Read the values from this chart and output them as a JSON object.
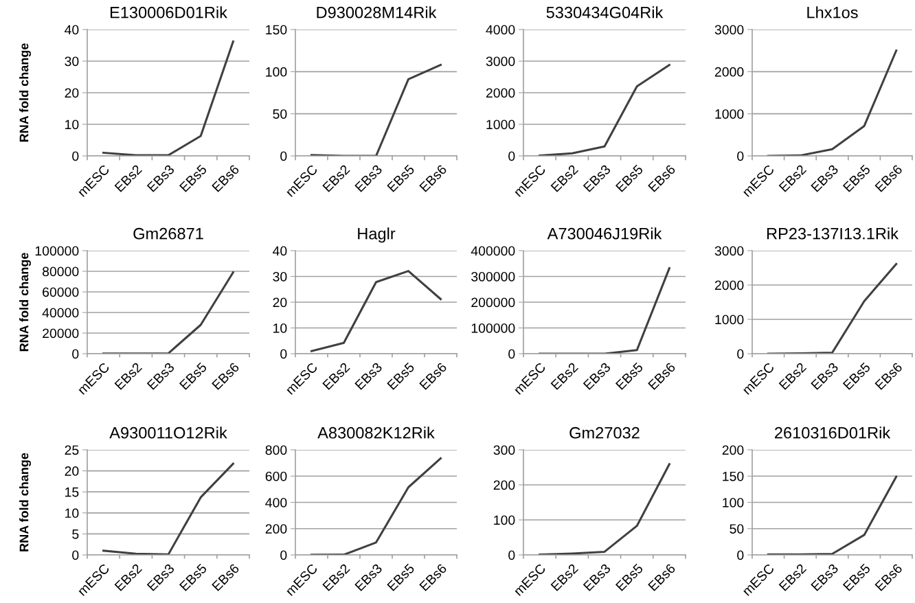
{
  "chart_data": [
    {
      "type": "line",
      "title": "E130006D01Rik",
      "ylabel": "RNA fold change",
      "categories": [
        "mESC",
        "EBs2",
        "EBs3",
        "EBs5",
        "EBs6"
      ],
      "series": [
        {
          "color": "#404040",
          "values": [
            1,
            0.2,
            0.2,
            6.3,
            36.2
          ]
        }
      ],
      "ylim": [
        0,
        40
      ],
      "yticks": [
        0,
        10,
        20,
        30,
        40
      ],
      "grid": "y",
      "marker": "none"
    },
    {
      "type": "line",
      "title": "D930028M14Rik",
      "categories": [
        "mESC",
        "EBs2",
        "EBs3",
        "EBs5",
        "EBs6"
      ],
      "series": [
        {
          "color": "#404040",
          "values": [
            1,
            0,
            0,
            91,
            108
          ]
        }
      ],
      "ylim": [
        0,
        150
      ],
      "yticks": [
        0,
        50,
        100,
        150
      ],
      "grid": "y",
      "marker": "none"
    },
    {
      "type": "line",
      "title": "5330434G04Rik",
      "categories": [
        "mESC",
        "EBs2",
        "EBs3",
        "EBs5",
        "EBs6"
      ],
      "series": [
        {
          "color": "#404040",
          "values": [
            10,
            80,
            300,
            2200,
            2880
          ]
        }
      ],
      "ylim": [
        0,
        4000
      ],
      "yticks": [
        0,
        1000,
        2000,
        3000,
        4000
      ],
      "grid": "y",
      "marker": "none"
    },
    {
      "type": "line",
      "title": "Lhx1os",
      "categories": [
        "mESC",
        "EBs2",
        "EBs3",
        "EBs5",
        "EBs6"
      ],
      "series": [
        {
          "color": "#404040",
          "values": [
            0,
            10,
            160,
            710,
            2500
          ]
        }
      ],
      "ylim": [
        0,
        3000
      ],
      "yticks": [
        0,
        1000,
        2000,
        3000
      ],
      "grid": "y",
      "marker": "none"
    },
    {
      "type": "line",
      "title": "Gm26871",
      "ylabel": "RNA fold change",
      "categories": [
        "mESC",
        "EBs2",
        "EBs3",
        "EBs5",
        "EBs6"
      ],
      "series": [
        {
          "color": "#404040",
          "values": [
            100,
            200,
            300,
            28000,
            79000
          ]
        }
      ],
      "ylim": [
        0,
        100000
      ],
      "yticks": [
        0,
        20000,
        40000,
        60000,
        80000,
        100000
      ],
      "grid": "y",
      "marker": "none"
    },
    {
      "type": "line",
      "title": "Haglr",
      "categories": [
        "mESC",
        "EBs2",
        "EBs3",
        "EBs5",
        "EBs6"
      ],
      "series": [
        {
          "color": "#404040",
          "values": [
            1,
            4.2,
            27.8,
            32.1,
            21.2
          ]
        }
      ],
      "ylim": [
        0,
        40
      ],
      "yticks": [
        0,
        10,
        20,
        30,
        40
      ],
      "grid": "y",
      "marker": "none"
    },
    {
      "type": "line",
      "title": "A730046J19Rik",
      "categories": [
        "mESC",
        "EBs2",
        "EBs3",
        "EBs5",
        "EBs6"
      ],
      "series": [
        {
          "color": "#404040",
          "values": [
            0,
            0,
            0,
            14000,
            332000
          ]
        }
      ],
      "ylim": [
        0,
        400000
      ],
      "yticks": [
        0,
        100000,
        200000,
        300000,
        400000
      ],
      "grid": "y",
      "marker": "none"
    },
    {
      "type": "line",
      "title": "RP23-137I13.1Rik",
      "categories": [
        "mESC",
        "EBs2",
        "EBs3",
        "EBs5",
        "EBs6"
      ],
      "series": [
        {
          "color": "#404040",
          "values": [
            0,
            10,
            30,
            1530,
            2610
          ]
        }
      ],
      "ylim": [
        0,
        3000
      ],
      "yticks": [
        0,
        1000,
        2000,
        3000
      ],
      "grid": "y",
      "marker": "none"
    },
    {
      "type": "line",
      "title": "A930011O12Rik",
      "ylabel": "RNA fold change",
      "categories": [
        "mESC",
        "EBs2",
        "EBs3",
        "EBs5",
        "EBs6"
      ],
      "series": [
        {
          "color": "#404040",
          "values": [
            1,
            0.3,
            0.1,
            13.7,
            21.7
          ]
        }
      ],
      "ylim": [
        0,
        25
      ],
      "yticks": [
        0,
        5,
        10,
        15,
        20,
        25
      ],
      "grid": "y",
      "marker": "none"
    },
    {
      "type": "line",
      "title": "A830082K12Rik",
      "categories": [
        "mESC",
        "EBs2",
        "EBs3",
        "EBs5",
        "EBs6"
      ],
      "series": [
        {
          "color": "#404040",
          "values": [
            1,
            2,
            95,
            515,
            735
          ]
        }
      ],
      "ylim": [
        0,
        800
      ],
      "yticks": [
        0,
        200,
        400,
        600,
        800
      ],
      "grid": "y",
      "marker": "none"
    },
    {
      "type": "line",
      "title": "Gm27032",
      "categories": [
        "mESC",
        "EBs2",
        "EBs3",
        "EBs5",
        "EBs6"
      ],
      "series": [
        {
          "color": "#404040",
          "values": [
            1,
            4,
            9,
            83,
            259
          ]
        }
      ],
      "ylim": [
        0,
        300
      ],
      "yticks": [
        0,
        100,
        200,
        300
      ],
      "grid": "y",
      "marker": "none"
    },
    {
      "type": "line",
      "title": "2610316D01Rik",
      "categories": [
        "mESC",
        "EBs2",
        "EBs3",
        "EBs5",
        "EBs6"
      ],
      "series": [
        {
          "color": "#404040",
          "values": [
            1,
            1,
            2,
            38,
            149
          ]
        }
      ],
      "ylim": [
        0,
        200
      ],
      "yticks": [
        0,
        50,
        100,
        150,
        200
      ],
      "grid": "y",
      "marker": "none"
    }
  ]
}
